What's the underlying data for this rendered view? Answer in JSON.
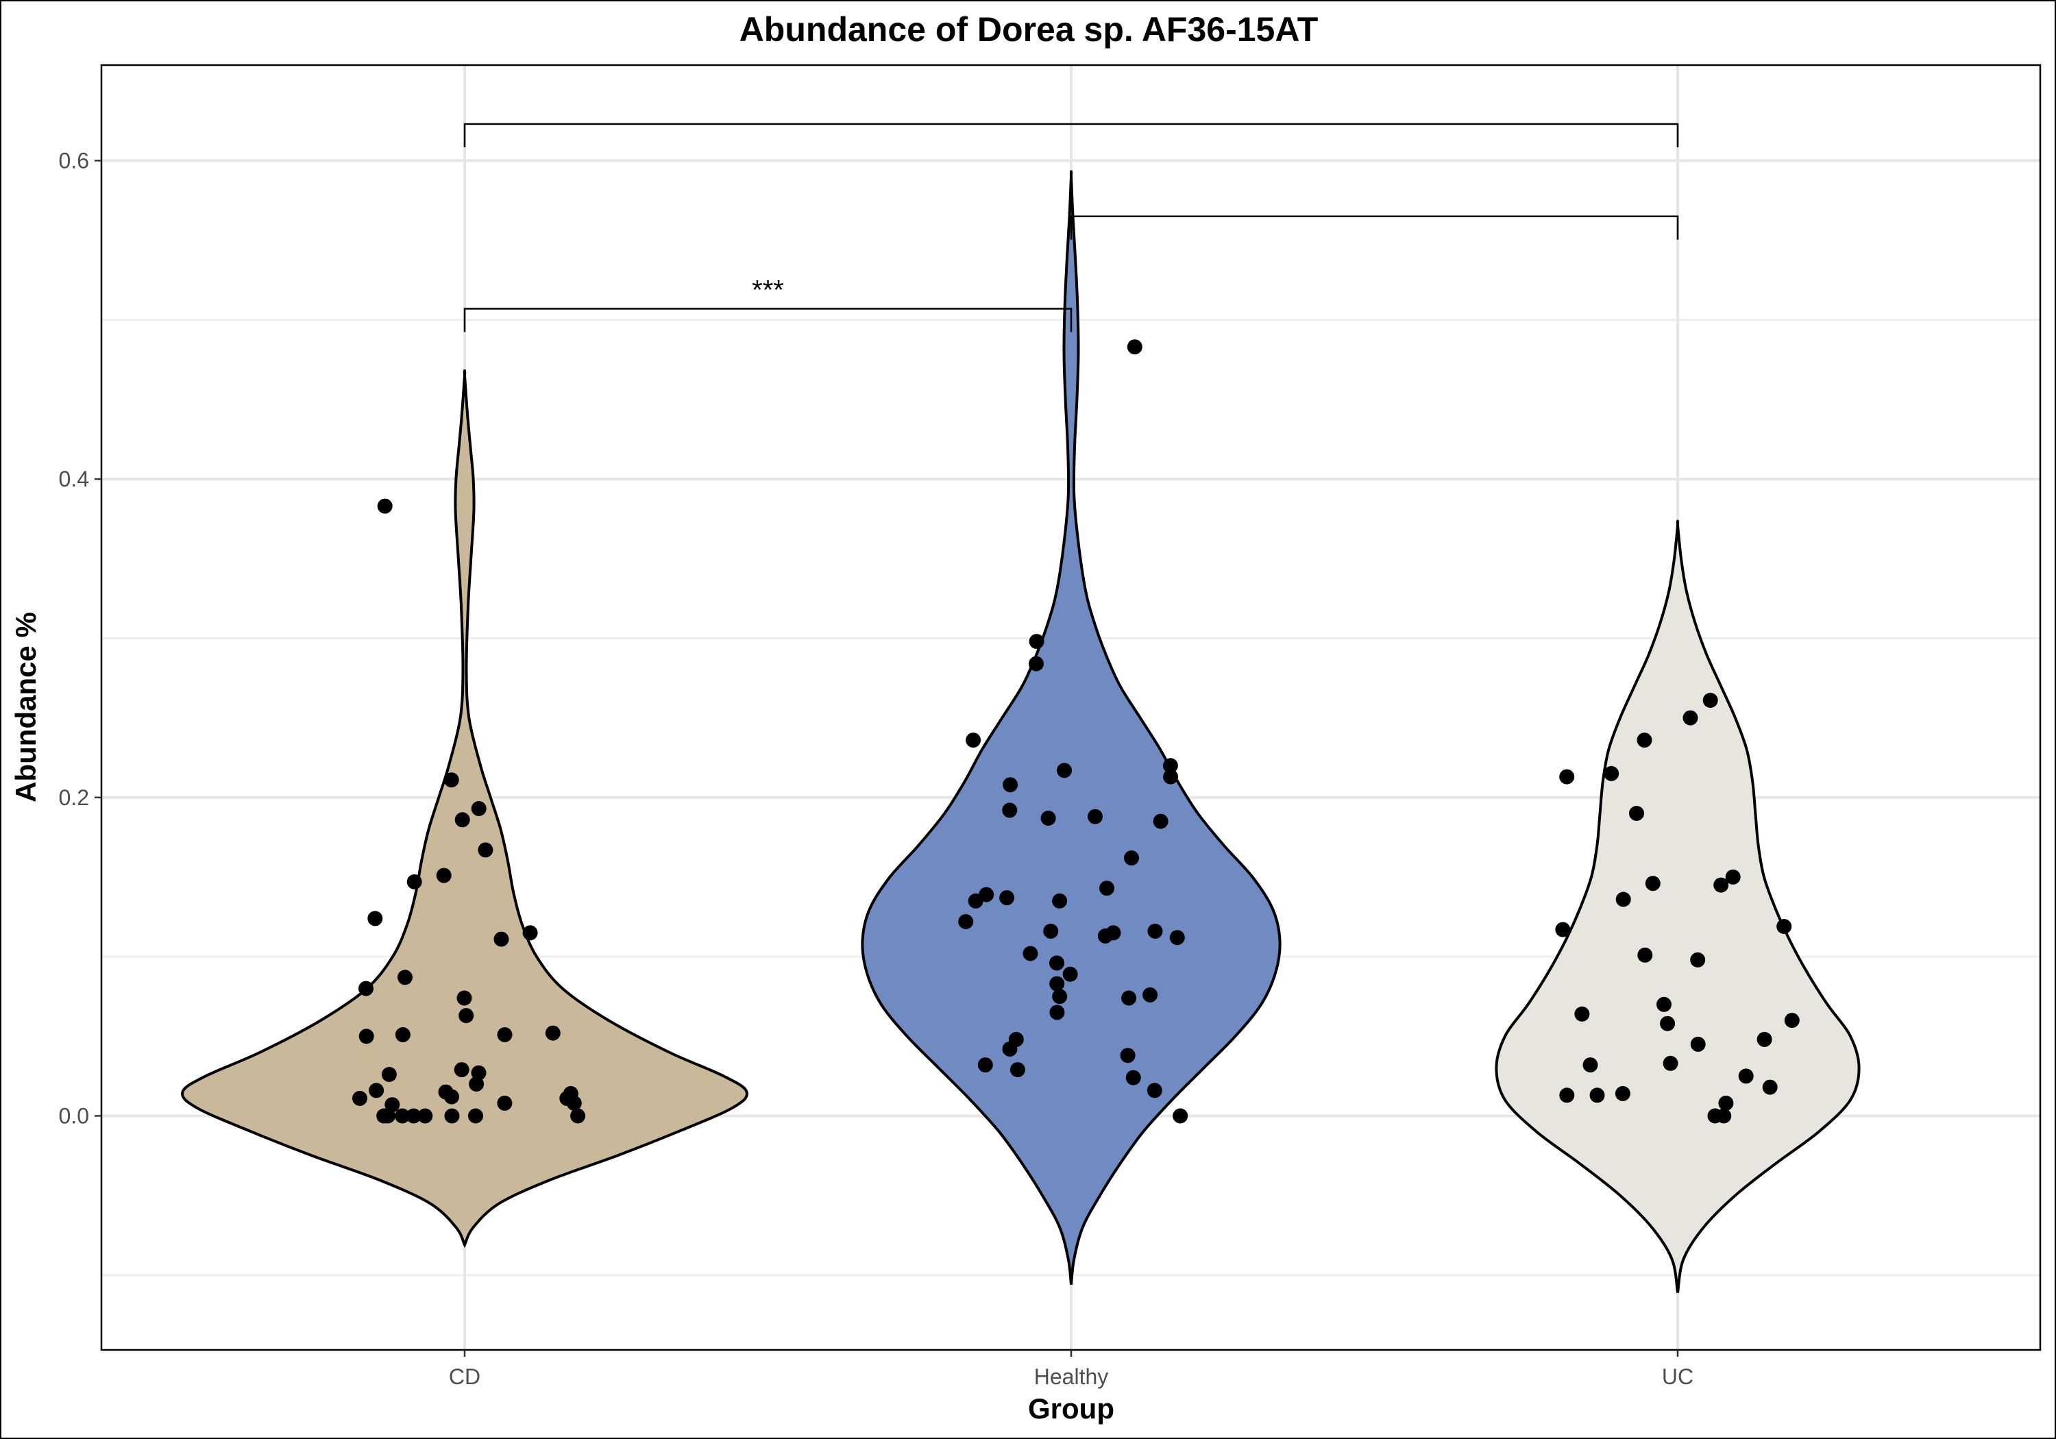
{
  "chart_data": {
    "type": "violin",
    "title": "Abundance of Dorea sp. AF36-15AT",
    "xlabel": "Group",
    "ylabel": "Abundance %",
    "ylim": [
      -0.147,
      0.66
    ],
    "yticks": [
      0.0,
      0.2,
      0.4,
      0.6
    ],
    "ytick_labels": [
      "0.0",
      "0.2",
      "0.4",
      "0.6"
    ],
    "categories": [
      "CD",
      "Healthy",
      "UC"
    ],
    "grid": true,
    "legend": "none",
    "groups": [
      {
        "name": "CD",
        "color": "#C9B899",
        "violin": {
          "ymin": -0.081,
          "ymax": 0.465,
          "profile": [
            [
              -0.081,
              0.0
            ],
            [
              -0.07,
              0.03
            ],
            [
              -0.055,
              0.12
            ],
            [
              -0.04,
              0.3
            ],
            [
              -0.025,
              0.53
            ],
            [
              -0.01,
              0.74
            ],
            [
              0.005,
              0.93
            ],
            [
              0.015,
              0.98
            ],
            [
              0.025,
              0.9
            ],
            [
              0.04,
              0.71
            ],
            [
              0.06,
              0.5
            ],
            [
              0.08,
              0.34
            ],
            [
              0.1,
              0.25
            ],
            [
              0.12,
              0.2
            ],
            [
              0.14,
              0.17
            ],
            [
              0.16,
              0.15
            ],
            [
              0.18,
              0.125
            ],
            [
              0.2,
              0.09
            ],
            [
              0.22,
              0.055
            ],
            [
              0.25,
              0.015
            ],
            [
              0.28,
              0.006
            ],
            [
              0.32,
              0.012
            ],
            [
              0.35,
              0.022
            ],
            [
              0.38,
              0.032
            ],
            [
              0.4,
              0.03
            ],
            [
              0.42,
              0.02
            ],
            [
              0.44,
              0.01
            ],
            [
              0.465,
              0.0
            ]
          ]
        },
        "points": [
          0.186,
          0.193,
          0.124,
          0.087,
          0.211,
          0.063,
          0.05,
          0.052,
          0.167,
          0.151,
          0.147,
          0.115,
          0.111,
          0.08,
          0.074,
          0.051,
          0.051,
          0.383,
          0.027,
          0.029,
          0.026,
          0.011,
          0.011,
          0.008,
          0.016,
          0.012,
          0.014,
          0.007,
          0.015,
          0.02,
          0.008,
          0.0,
          0.0,
          0.0,
          0.0,
          0.0,
          0.0,
          0.0,
          0.0
        ]
      },
      {
        "name": "Healthy",
        "color": "#6F8BC1",
        "violin": {
          "ymin": -0.106,
          "ymax": 0.59,
          "profile": [
            [
              -0.106,
              0.0
            ],
            [
              -0.09,
              0.01
            ],
            [
              -0.07,
              0.04
            ],
            [
              -0.05,
              0.1
            ],
            [
              -0.03,
              0.17
            ],
            [
              -0.01,
              0.25
            ],
            [
              0.01,
              0.35
            ],
            [
              0.03,
              0.46
            ],
            [
              0.05,
              0.57
            ],
            [
              0.07,
              0.66
            ],
            [
              0.09,
              0.71
            ],
            [
              0.11,
              0.725
            ],
            [
              0.13,
              0.7
            ],
            [
              0.15,
              0.63
            ],
            [
              0.17,
              0.53
            ],
            [
              0.19,
              0.44
            ],
            [
              0.21,
              0.37
            ],
            [
              0.23,
              0.31
            ],
            [
              0.25,
              0.24
            ],
            [
              0.27,
              0.17
            ],
            [
              0.29,
              0.12
            ],
            [
              0.31,
              0.08
            ],
            [
              0.33,
              0.05
            ],
            [
              0.36,
              0.025
            ],
            [
              0.39,
              0.01
            ],
            [
              0.42,
              0.012
            ],
            [
              0.45,
              0.02
            ],
            [
              0.48,
              0.025
            ],
            [
              0.51,
              0.022
            ],
            [
              0.54,
              0.014
            ],
            [
              0.565,
              0.006
            ],
            [
              0.59,
              0.0
            ]
          ]
        },
        "points": [
          0.483,
          0.298,
          0.284,
          0.236,
          0.22,
          0.208,
          0.185,
          0.217,
          0.192,
          0.188,
          0.187,
          0.162,
          0.143,
          0.139,
          0.137,
          0.135,
          0.135,
          0.122,
          0.116,
          0.115,
          0.113,
          0.112,
          0.102,
          0.096,
          0.089,
          0.083,
          0.076,
          0.075,
          0.065,
          0.048,
          0.042,
          0.038,
          0.032,
          0.029,
          0.024,
          0.016,
          0.0,
          0.213,
          0.116,
          0.074
        ]
      },
      {
        "name": "UC",
        "color": "#E8E5DE",
        "violin": {
          "ymin": -0.111,
          "ymax": 0.371,
          "profile": [
            [
              -0.111,
              0.0
            ],
            [
              -0.09,
              0.02
            ],
            [
              -0.07,
              0.09
            ],
            [
              -0.05,
              0.2
            ],
            [
              -0.03,
              0.34
            ],
            [
              -0.01,
              0.49
            ],
            [
              0.01,
              0.6
            ],
            [
              0.03,
              0.63
            ],
            [
              0.05,
              0.6
            ],
            [
              0.07,
              0.52
            ],
            [
              0.09,
              0.45
            ],
            [
              0.11,
              0.39
            ],
            [
              0.13,
              0.34
            ],
            [
              0.15,
              0.3
            ],
            [
              0.17,
              0.28
            ],
            [
              0.19,
              0.27
            ],
            [
              0.21,
              0.26
            ],
            [
              0.23,
              0.24
            ],
            [
              0.25,
              0.2
            ],
            [
              0.27,
              0.15
            ],
            [
              0.29,
              0.1
            ],
            [
              0.31,
              0.06
            ],
            [
              0.33,
              0.03
            ],
            [
              0.35,
              0.012
            ],
            [
              0.371,
              0.0
            ]
          ]
        },
        "points": [
          0.261,
          0.25,
          0.213,
          0.19,
          0.236,
          0.215,
          0.146,
          0.145,
          0.15,
          0.136,
          0.119,
          0.117,
          0.101,
          0.098,
          0.07,
          0.064,
          0.06,
          0.058,
          0.048,
          0.045,
          0.033,
          0.032,
          0.025,
          0.018,
          0.014,
          0.013,
          0.013,
          0.008,
          0.0,
          0.0
        ]
      }
    ],
    "comparisons": [
      {
        "groups": [
          "CD",
          "Healthy"
        ],
        "label": "***",
        "y": 0.507
      },
      {
        "groups": [
          "Healthy",
          "UC"
        ],
        "label": "",
        "y": 0.565
      },
      {
        "groups": [
          "CD",
          "UC"
        ],
        "label": "",
        "y": 0.623
      }
    ]
  }
}
